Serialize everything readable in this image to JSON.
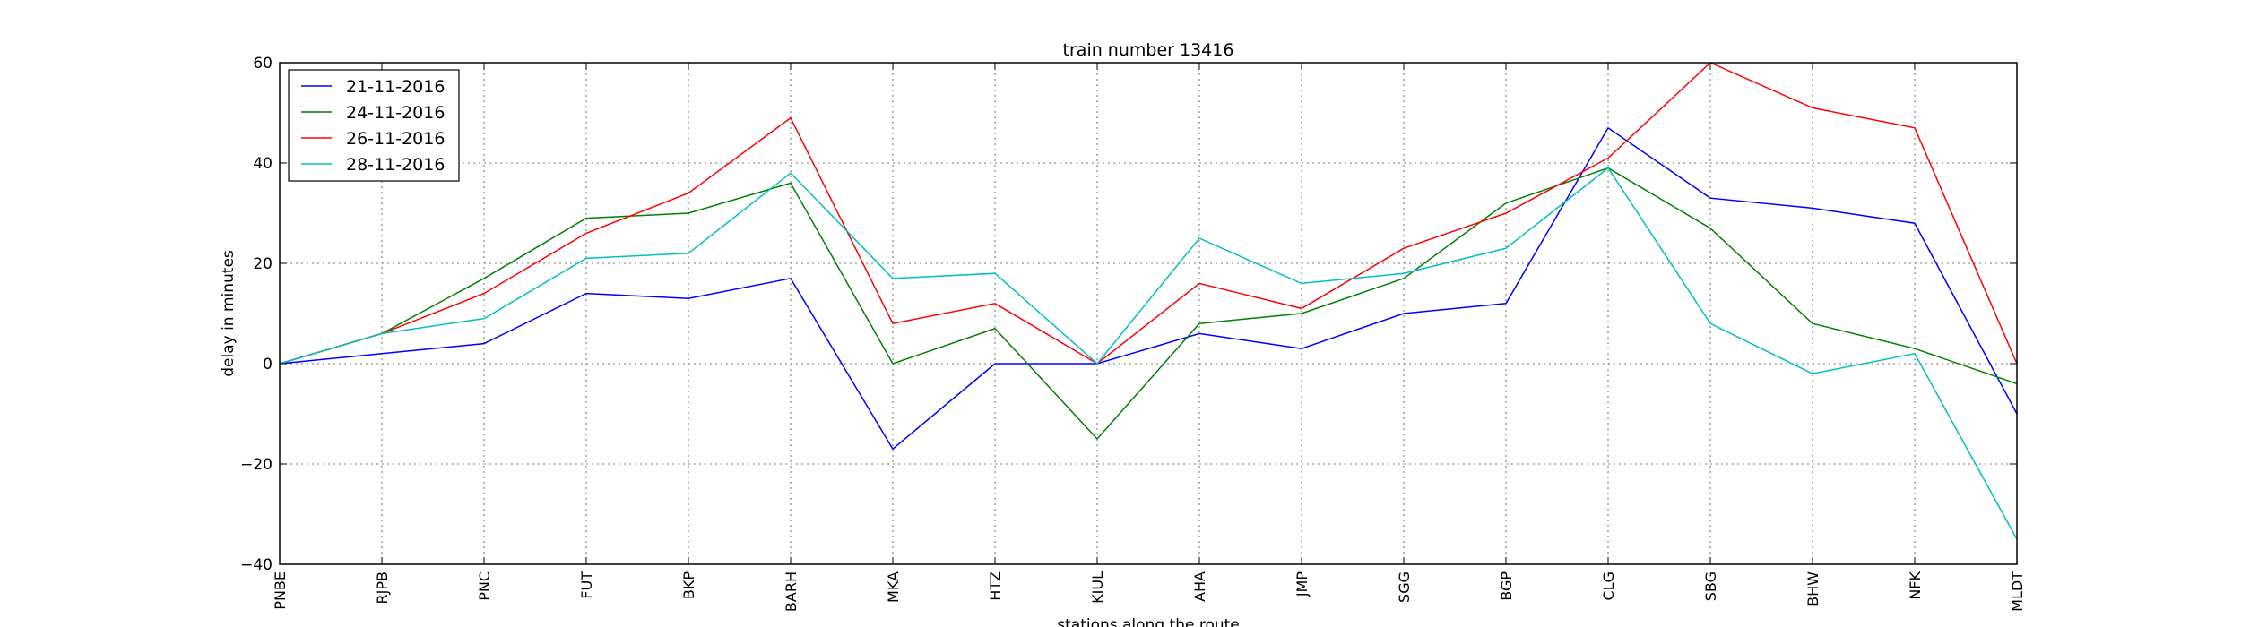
{
  "chart_data": {
    "type": "line",
    "title": "train number 13416",
    "xlabel": "stations along the route",
    "ylabel": "delay in minutes",
    "categories": [
      "PNBE",
      "RJPB",
      "PNC",
      "FUT",
      "BKP",
      "BARH",
      "MKA",
      "HTZ",
      "KIUL",
      "AHA",
      "JMP",
      "SGG",
      "BGP",
      "CLG",
      "SBG",
      "BHW",
      "NFK",
      "MLDT"
    ],
    "ylim": [
      -40,
      60
    ],
    "yticks": [
      -40,
      -20,
      0,
      20,
      40,
      60
    ],
    "ytick_labels": [
      "−40",
      "−20",
      "0",
      "20",
      "40",
      "60"
    ],
    "grid": true,
    "legend_position": "upper-left",
    "series": [
      {
        "name": "21-11-2016",
        "color": "#0000ff",
        "values": [
          0,
          2,
          4,
          14,
          13,
          17,
          -17,
          0,
          0,
          6,
          3,
          10,
          12,
          47,
          33,
          31,
          28,
          -10
        ]
      },
      {
        "name": "24-11-2016",
        "color": "#008000",
        "values": [
          0,
          6,
          17,
          29,
          30,
          36,
          0,
          7,
          -15,
          8,
          10,
          17,
          32,
          39,
          27,
          8,
          3,
          -4
        ]
      },
      {
        "name": "26-11-2016",
        "color": "#ff0000",
        "values": [
          0,
          6,
          14,
          26,
          34,
          49,
          8,
          12,
          0,
          16,
          11,
          23,
          30,
          41,
          60,
          51,
          47,
          0
        ]
      },
      {
        "name": "28-11-2016",
        "color": "#00bfbf",
        "values": [
          0,
          6,
          9,
          21,
          22,
          38,
          17,
          18,
          0,
          25,
          16,
          18,
          23,
          39,
          8,
          -2,
          2,
          -35
        ]
      }
    ]
  }
}
